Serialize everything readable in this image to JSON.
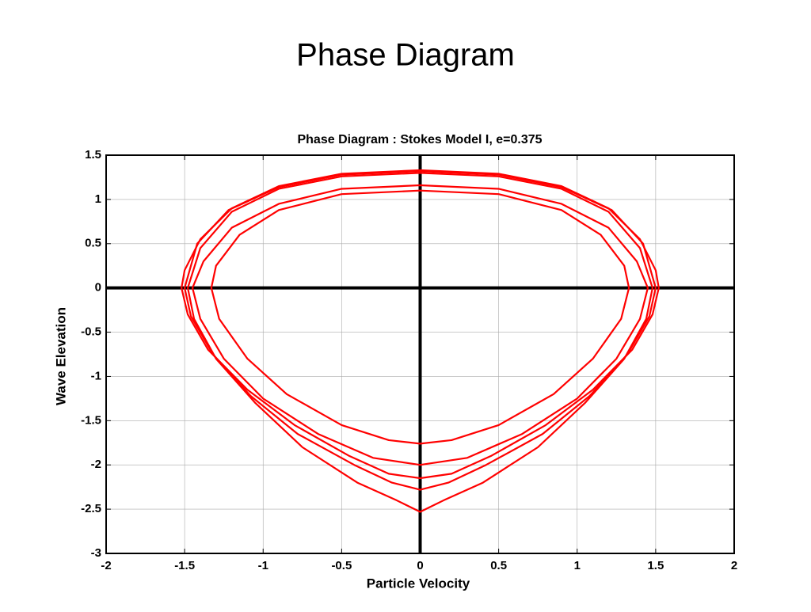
{
  "slide_title": "Phase Diagram",
  "chart_data": {
    "type": "line",
    "title": "Phase Diagram : Stokes Model I, e=0.375",
    "xlabel": "Particle Velocity",
    "ylabel": "Wave Elevation",
    "xlim": [
      -2,
      2
    ],
    "ylim": [
      -3,
      1.5
    ],
    "xticks": [
      -2,
      -1.5,
      -1,
      -0.5,
      0,
      0.5,
      1,
      1.5,
      2
    ],
    "yticks": [
      -3,
      -2.5,
      -2,
      -1.5,
      -1,
      -0.5,
      0,
      0.5,
      1,
      1.5
    ],
    "grid": true,
    "color": "#ff0000",
    "series": [
      {
        "x": [
          0,
          0.5,
          0.9,
          1.2,
          1.4,
          1.5,
          1.52,
          1.48,
          1.35,
          1.1,
          0.8,
          0.45,
          0.2,
          0,
          -0.2,
          -0.45,
          -0.8,
          -1.1,
          -1.35,
          -1.48,
          -1.52,
          -1.5,
          -1.4,
          -1.2,
          -0.9,
          -0.5,
          0
        ],
        "y": [
          1.33,
          1.29,
          1.15,
          0.9,
          0.55,
          0.2,
          0,
          -0.3,
          -0.7,
          -1.15,
          -1.55,
          -1.9,
          -2.1,
          -2.15,
          -2.1,
          -1.9,
          -1.55,
          -1.15,
          -0.7,
          -0.3,
          0,
          0.2,
          0.55,
          0.9,
          1.15,
          1.29,
          1.33
        ]
      },
      {
        "x": [
          0,
          0.5,
          0.9,
          1.15,
          1.3,
          1.33,
          1.28,
          1.1,
          0.85,
          0.5,
          0.2,
          0,
          -0.2,
          -0.5,
          -0.85,
          -1.1,
          -1.28,
          -1.33,
          -1.3,
          -1.15,
          -0.9,
          -0.5,
          0
        ],
        "y": [
          1.1,
          1.06,
          0.88,
          0.6,
          0.25,
          0,
          -0.35,
          -0.8,
          -1.2,
          -1.55,
          -1.72,
          -1.76,
          -1.72,
          -1.55,
          -1.2,
          -0.8,
          -0.35,
          0,
          0.25,
          0.6,
          0.88,
          1.06,
          1.1
        ]
      },
      {
        "x": [
          0,
          0.5,
          0.9,
          1.2,
          1.38,
          1.45,
          1.4,
          1.25,
          1.0,
          0.65,
          0.3,
          0,
          -0.3,
          -0.65,
          -1.0,
          -1.25,
          -1.4,
          -1.45,
          -1.38,
          -1.2,
          -0.9,
          -0.5,
          0
        ],
        "y": [
          1.16,
          1.12,
          0.95,
          0.68,
          0.3,
          0,
          -0.35,
          -0.8,
          -1.25,
          -1.65,
          -1.92,
          -2.0,
          -1.92,
          -1.65,
          -1.25,
          -0.8,
          -0.35,
          0,
          0.3,
          0.68,
          0.95,
          1.12,
          1.16
        ]
      },
      {
        "x": [
          0,
          0.5,
          0.9,
          1.2,
          1.4,
          1.48,
          1.44,
          1.3,
          1.05,
          0.75,
          0.4,
          0.15,
          0,
          -0.15,
          -0.4,
          -0.75,
          -1.05,
          -1.3,
          -1.44,
          -1.48,
          -1.4,
          -1.2,
          -0.9,
          -0.5,
          0
        ],
        "y": [
          1.3,
          1.26,
          1.12,
          0.86,
          0.45,
          0,
          -0.35,
          -0.8,
          -1.3,
          -1.8,
          -2.2,
          -2.4,
          -2.53,
          -2.4,
          -2.2,
          -1.8,
          -1.3,
          -0.8,
          -0.35,
          0,
          0.45,
          0.86,
          1.12,
          1.26,
          1.3
        ]
      },
      {
        "x": [
          0,
          0.5,
          0.9,
          1.22,
          1.42,
          1.5,
          1.46,
          1.32,
          1.08,
          0.78,
          0.42,
          0.18,
          0,
          -0.18,
          -0.42,
          -0.78,
          -1.08,
          -1.32,
          -1.46,
          -1.5,
          -1.42,
          -1.22,
          -0.9,
          -0.5,
          0
        ],
        "y": [
          1.32,
          1.28,
          1.14,
          0.88,
          0.5,
          0,
          -0.32,
          -0.75,
          -1.22,
          -1.65,
          -2.0,
          -2.2,
          -2.28,
          -2.2,
          -2.0,
          -1.65,
          -1.22,
          -0.75,
          -0.32,
          0,
          0.5,
          0.88,
          1.14,
          1.28,
          1.32
        ]
      }
    ]
  }
}
